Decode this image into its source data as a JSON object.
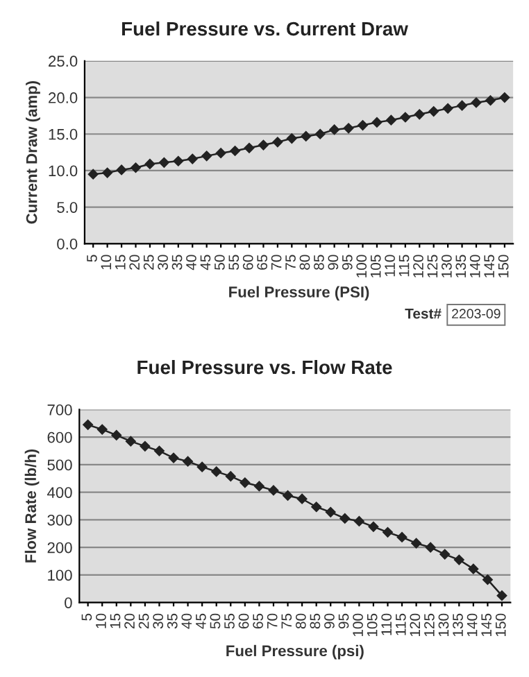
{
  "chart_data": [
    {
      "type": "line",
      "title": "Fuel Pressure vs. Current Draw",
      "xlabel": "Fuel Pressure (PSI)",
      "ylabel": "Current Draw (amp)",
      "categories": [
        "5",
        "10",
        "15",
        "20",
        "25",
        "30",
        "35",
        "40",
        "45",
        "50",
        "55",
        "60",
        "65",
        "70",
        "75",
        "80",
        "85",
        "90",
        "95",
        "100",
        "105",
        "110",
        "115",
        "120",
        "125",
        "130",
        "135",
        "140",
        "145",
        "150"
      ],
      "series": [
        {
          "color": "#222222",
          "values": [
            9.5,
            9.7,
            10.1,
            10.4,
            10.9,
            11.1,
            11.3,
            11.6,
            12.0,
            12.4,
            12.7,
            13.1,
            13.5,
            13.9,
            14.4,
            14.7,
            15.0,
            15.6,
            15.8,
            16.2,
            16.6,
            16.9,
            17.3,
            17.7,
            18.1,
            18.5,
            18.9,
            19.3,
            19.6,
            20.0
          ]
        }
      ],
      "ylim": [
        0,
        25
      ],
      "yticks": [
        {
          "value": 0,
          "label": "0.0"
        },
        {
          "value": 5,
          "label": "5.0"
        },
        {
          "value": 10,
          "label": "10.0"
        },
        {
          "value": 15,
          "label": "15.0"
        },
        {
          "value": 20,
          "label": "20.0"
        },
        {
          "value": 25,
          "label": "25.0"
        }
      ],
      "grid": "y",
      "marker": "diamond",
      "line_style": "solid",
      "annotations": [
        "Test#",
        "2203-09"
      ]
    },
    {
      "type": "line",
      "title": "Fuel Pressure vs. Flow Rate",
      "xlabel": "Fuel Pressure (psi)",
      "ylabel": "Flow Rate (lb/h)",
      "categories": [
        "5",
        "10",
        "15",
        "20",
        "25",
        "30",
        "35",
        "40",
        "45",
        "50",
        "55",
        "60",
        "65",
        "70",
        "75",
        "80",
        "85",
        "90",
        "95",
        "100",
        "105",
        "110",
        "115",
        "120",
        "125",
        "130",
        "135",
        "140",
        "145",
        "150"
      ],
      "series": [
        {
          "color": "#222222",
          "values": [
            645,
            628,
            607,
            585,
            567,
            550,
            525,
            512,
            492,
            475,
            458,
            435,
            422,
            407,
            388,
            376,
            347,
            328,
            305,
            295,
            275,
            255,
            237,
            215,
            200,
            175,
            155,
            122,
            83,
            25
          ]
        }
      ],
      "ylim": [
        0,
        700
      ],
      "yticks": [
        0,
        100,
        200,
        300,
        400,
        500,
        600,
        700
      ],
      "grid": "y",
      "marker": "diamond",
      "line_style": "solid"
    }
  ]
}
